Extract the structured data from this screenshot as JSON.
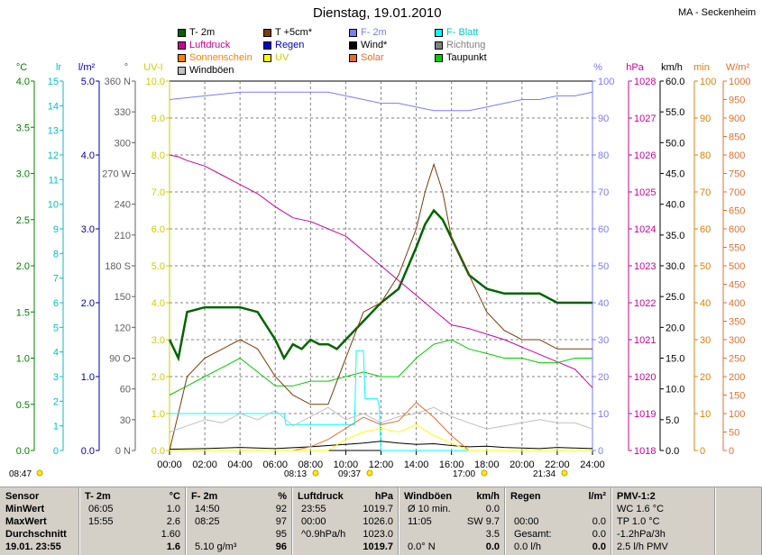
{
  "title": "Dienstag, 19.01.2010",
  "location": "MA - Seckenheim",
  "legend": [
    {
      "label": "T- 2m",
      "color": "#006400",
      "text_color": "#000000"
    },
    {
      "label": "T +5cm*",
      "color": "#7b3b0b",
      "text_color": "#000000"
    },
    {
      "label": "F- 2m",
      "color": "#7a7aff",
      "text_color": "#7a7aff"
    },
    {
      "label": "F- Blatt",
      "color": "#00ffff",
      "text_color": "#00c8c8"
    },
    {
      "label": "Luftdruck",
      "color": "#cc0099",
      "text_color": "#cc0099"
    },
    {
      "label": "Regen",
      "color": "#0000cc",
      "text_color": "#0000cc"
    },
    {
      "label": "Wind*",
      "color": "#000000",
      "text_color": "#000000"
    },
    {
      "label": "Richtung",
      "color": "#808080",
      "text_color": "#808080"
    },
    {
      "label": "Sonnenschein",
      "color": "#ff8000",
      "text_color": "#ff8000"
    },
    {
      "label": "UV",
      "color": "#ffff00",
      "text_color": "#cccc00"
    },
    {
      "label": "Solar",
      "color": "#e07030",
      "text_color": "#e07030"
    },
    {
      "label": "Taupunkt",
      "color": "#00cc00",
      "text_color": "#000000"
    },
    {
      "label": "Windböen",
      "color": "#c0c0c0",
      "text_color": "#000000"
    }
  ],
  "chart_data": {
    "type": "line",
    "x_ticks": [
      "00:00",
      "02:00",
      "04:00",
      "06:00",
      "08:00",
      "10:00",
      "12:00",
      "14:00",
      "16:00",
      "18:00",
      "20:00",
      "22:00",
      "24:00"
    ],
    "axes": {
      "left": [
        {
          "unit": "°C",
          "color": "#008000",
          "ticks": [
            "4.0",
            "3.5",
            "3.0",
            "2.5",
            "2.0",
            "1.5",
            "1.0",
            "0.5",
            "0.0"
          ]
        },
        {
          "unit": "lr",
          "color": "#00c0c0",
          "ticks": [
            "15",
            "14",
            "13",
            "12",
            "11",
            "10",
            "9",
            "8",
            "7",
            "6",
            "5",
            "4",
            "3",
            "2",
            "1",
            "0"
          ]
        },
        {
          "unit": "l/m²",
          "color": "#0000aa",
          "ticks": [
            "5.0",
            "4.0",
            "3.0",
            "2.0",
            "1.0",
            "0.0"
          ]
        },
        {
          "unit": "°",
          "color": "#606060",
          "ticks": [
            "360 N",
            "330",
            "300",
            "270 W",
            "240",
            "210",
            "180 S",
            "150",
            "120",
            "90 O",
            "60",
            "30",
            "0 N"
          ]
        },
        {
          "unit": "UV-I",
          "color": "#cccc00",
          "ticks": [
            "10.0",
            "9.0",
            "8.0",
            "7.0",
            "6.0",
            "5.0",
            "4.0",
            "3.0",
            "2.0",
            "1.0",
            "0.0"
          ]
        }
      ],
      "right": [
        {
          "unit": "%",
          "color": "#7a7aff",
          "ticks": [
            "100",
            "90",
            "80",
            "70",
            "60",
            "50",
            "40",
            "30",
            "20",
            "10",
            "0"
          ]
        },
        {
          "unit": "hPa",
          "color": "#cc0099",
          "ticks": [
            "1028",
            "1027",
            "1026",
            "1025",
            "1024",
            "1023",
            "1022",
            "1021",
            "1020",
            "1019",
            "1018"
          ]
        },
        {
          "unit": "km/h",
          "color": "#000000",
          "ticks": [
            "60.0",
            "55.0",
            "50.0",
            "45.0",
            "40.0",
            "35.0",
            "30.0",
            "25.0",
            "20.0",
            "15.0",
            "10.0",
            "5.0",
            "0.0"
          ]
        },
        {
          "unit": "min",
          "color": "#e08000",
          "ticks": [
            "100",
            "90",
            "80",
            "70",
            "60",
            "50",
            "40",
            "30",
            "20",
            "10",
            "0"
          ]
        },
        {
          "unit": "W/m²",
          "color": "#e07030",
          "ticks": [
            "1000",
            "950",
            "900",
            "850",
            "800",
            "750",
            "700",
            "650",
            "600",
            "550",
            "500",
            "450",
            "400",
            "350",
            "300",
            "250",
            "200",
            "150",
            "100",
            "50",
            "0"
          ]
        }
      ]
    },
    "series": [
      {
        "name": "T- 2m",
        "color": "#006400",
        "axis": "°C",
        "x": [
          0,
          0.5,
          1,
          2,
          3,
          4,
          5,
          6,
          6.5,
          7,
          7.5,
          8,
          8.5,
          9,
          9.5,
          10,
          10.5,
          11,
          11.5,
          12,
          13,
          14,
          14.5,
          15,
          15.5,
          16,
          17,
          18,
          19,
          20,
          21,
          22,
          23,
          24
        ],
        "y": [
          1.2,
          1.0,
          1.5,
          1.55,
          1.55,
          1.55,
          1.5,
          1.2,
          1.0,
          1.15,
          1.1,
          1.2,
          1.15,
          1.15,
          1.1,
          1.2,
          1.3,
          1.4,
          1.5,
          1.6,
          1.75,
          2.2,
          2.45,
          2.6,
          2.5,
          2.3,
          1.9,
          1.75,
          1.7,
          1.7,
          1.7,
          1.6,
          1.6,
          1.6
        ]
      },
      {
        "name": "Luftdruck",
        "color": "#cc0099",
        "axis": "hPa",
        "x": [
          0,
          0.5,
          1,
          2,
          3,
          4,
          5,
          6,
          7,
          8,
          9,
          10,
          11,
          12,
          13,
          14,
          15,
          16,
          17,
          18,
          19,
          20,
          21,
          22,
          23,
          24
        ],
        "y": [
          1026.0,
          1025.95,
          1025.85,
          1025.7,
          1025.45,
          1025.2,
          1024.95,
          1024.6,
          1024.3,
          1024.2,
          1024.0,
          1023.8,
          1023.4,
          1023.0,
          1022.6,
          1022.2,
          1021.8,
          1021.4,
          1021.3,
          1021.15,
          1021.0,
          1020.8,
          1020.6,
          1020.4,
          1020.2,
          1019.7
        ]
      },
      {
        "name": "F- 2m",
        "color": "#7a7aff",
        "axis": "%",
        "x": [
          0,
          2,
          4,
          6,
          8,
          9,
          10,
          11,
          12,
          13,
          14,
          15,
          16,
          17,
          18,
          19,
          20,
          21,
          22,
          23,
          24
        ],
        "y": [
          95,
          96,
          97,
          97,
          97,
          97,
          96,
          95,
          94,
          94,
          93,
          92,
          92,
          92,
          93,
          94,
          95,
          95,
          96,
          96,
          97
        ]
      },
      {
        "name": "Taupunkt",
        "color": "#00cc00",
        "axis": "°C",
        "x": [
          0,
          1,
          2,
          3,
          4,
          5,
          6,
          7,
          8,
          9,
          10,
          11,
          12,
          13,
          14,
          15,
          16,
          17,
          18,
          19,
          20,
          21,
          22,
          23,
          24
        ],
        "y": [
          0.6,
          0.7,
          0.8,
          0.9,
          1.0,
          0.85,
          0.7,
          0.7,
          0.75,
          0.75,
          0.8,
          0.85,
          0.8,
          0.8,
          1.0,
          1.15,
          1.2,
          1.1,
          1.05,
          1.0,
          1.0,
          0.95,
          0.95,
          1.0,
          1.0
        ]
      },
      {
        "name": "T +5cm*",
        "color": "#7b3b0b",
        "axis": "°C",
        "x": [
          0,
          0.5,
          1,
          2,
          3,
          4,
          5,
          6,
          7,
          8,
          9,
          10,
          11,
          12,
          13,
          14,
          14.5,
          15,
          15.5,
          16,
          17,
          18,
          19,
          20,
          21,
          22,
          23,
          24
        ],
        "y": [
          0.0,
          0.4,
          0.8,
          1.0,
          1.1,
          1.2,
          1.1,
          0.8,
          0.6,
          0.5,
          0.5,
          1.0,
          1.5,
          1.6,
          1.9,
          2.4,
          2.8,
          3.1,
          2.8,
          2.3,
          1.9,
          1.5,
          1.3,
          1.2,
          1.2,
          1.1,
          1.1,
          1.1
        ]
      },
      {
        "name": "F- Blatt",
        "color": "#00ffff",
        "axis": "%",
        "x": [
          0,
          6.5,
          6.6,
          10.5,
          10.6,
          11,
          11.1,
          11.8,
          11.9,
          12,
          24
        ],
        "y": [
          10,
          10,
          7,
          7,
          27,
          27,
          14,
          14,
          12,
          0,
          0
        ]
      },
      {
        "name": "Windböen",
        "color": "#c0c0c0",
        "axis": "km/h",
        "x": [
          0,
          1,
          2,
          3,
          4,
          5,
          6,
          7,
          8,
          9,
          10,
          11,
          12,
          13,
          14,
          15,
          16,
          17,
          18,
          19,
          20,
          21,
          22,
          23,
          24
        ],
        "y": [
          3.0,
          4.0,
          5.0,
          4.5,
          6.0,
          5.0,
          6.5,
          4.0,
          5.5,
          7.0,
          5.0,
          6.0,
          4.5,
          5.5,
          6.0,
          7.0,
          5.5,
          4.5,
          3.5,
          4.0,
          4.5,
          5.0,
          4.5,
          4.5,
          3.5
        ]
      },
      {
        "name": "Wind*",
        "color": "#000000",
        "axis": "km/h",
        "x": [
          0,
          2,
          4,
          6,
          8,
          9,
          10,
          11,
          12,
          13,
          14,
          15,
          16,
          17,
          18,
          19,
          20,
          21,
          22,
          23,
          24
        ],
        "y": [
          0.2,
          0.3,
          0.5,
          0.3,
          0.6,
          0.8,
          1.0,
          1.2,
          1.5,
          1.2,
          1.0,
          1.1,
          0.8,
          0.6,
          0.7,
          0.5,
          0.4,
          0.3,
          0.5,
          0.4,
          0.3
        ]
      },
      {
        "name": "Solar",
        "color": "#e07030",
        "axis": "W/m²",
        "x": [
          0,
          7,
          8,
          9,
          10,
          11,
          12,
          13,
          14,
          15,
          16,
          17,
          24
        ],
        "y": [
          0,
          0,
          10,
          30,
          60,
          90,
          70,
          80,
          130,
          90,
          40,
          0,
          0
        ]
      },
      {
        "name": "UV",
        "color": "#ffff00",
        "axis": "UV-I",
        "x": [
          0,
          9,
          10,
          11,
          12,
          13,
          14,
          15,
          16,
          17,
          24
        ],
        "y": [
          0,
          0,
          0.3,
          0.5,
          0.6,
          0.5,
          0.7,
          0.4,
          0.2,
          0,
          0
        ]
      }
    ],
    "sun_markers": [
      "08:13",
      "09:37",
      "17:00",
      "21:34"
    ],
    "left_marker": "08:47",
    "grid": true
  },
  "stats": {
    "sensor": {
      "header": "Sensor",
      "rows": [
        "MinWert",
        "MaxWert",
        "Durchschnitt",
        "19.01. 23:55"
      ]
    },
    "t2m": {
      "header": "T- 2m",
      "unit": "°C",
      "rows": [
        [
          "06:05",
          "1.0"
        ],
        [
          "15:55",
          "2.6"
        ],
        [
          "",
          "1.60"
        ],
        [
          "",
          "1.6"
        ]
      ]
    },
    "f2m": {
      "header": "F- 2m",
      "unit": "%",
      "rows": [
        [
          "14:50",
          "92"
        ],
        [
          "08:25",
          "97"
        ],
        [
          "",
          "95"
        ],
        [
          "5.10 g/m³",
          "96"
        ]
      ]
    },
    "druck": {
      "header": "Luftdruck",
      "unit": "hPa",
      "rows": [
        [
          "23:55",
          "1019.7"
        ],
        [
          "00:00",
          "1026.0"
        ],
        [
          "^0.9hPa/h",
          "1023.0"
        ],
        [
          "",
          "1019.7"
        ]
      ]
    },
    "wind": {
      "header": "Windböen",
      "unit": "km/h",
      "rows": [
        [
          "Ø 10 min.",
          "0.0"
        ],
        [
          "11:05",
          "SW 9.7"
        ],
        [
          "",
          "3.5"
        ],
        [
          "0.0° N",
          "0.0"
        ]
      ]
    },
    "regen": {
      "header": "Regen",
      "unit": "l/m²",
      "rows": [
        [
          "",
          ""
        ],
        [
          "00:00",
          "0.0"
        ],
        [
          "Gesamt:",
          "0.0"
        ],
        [
          "0.0 l/h",
          "0.0"
        ]
      ]
    },
    "pmv": {
      "header": "PMV-1:2",
      "rows": [
        "WC 1.6 °C",
        "TP 1.0 °C",
        "-1.2hPa/3h",
        "2.5 l/h PMV"
      ]
    }
  }
}
